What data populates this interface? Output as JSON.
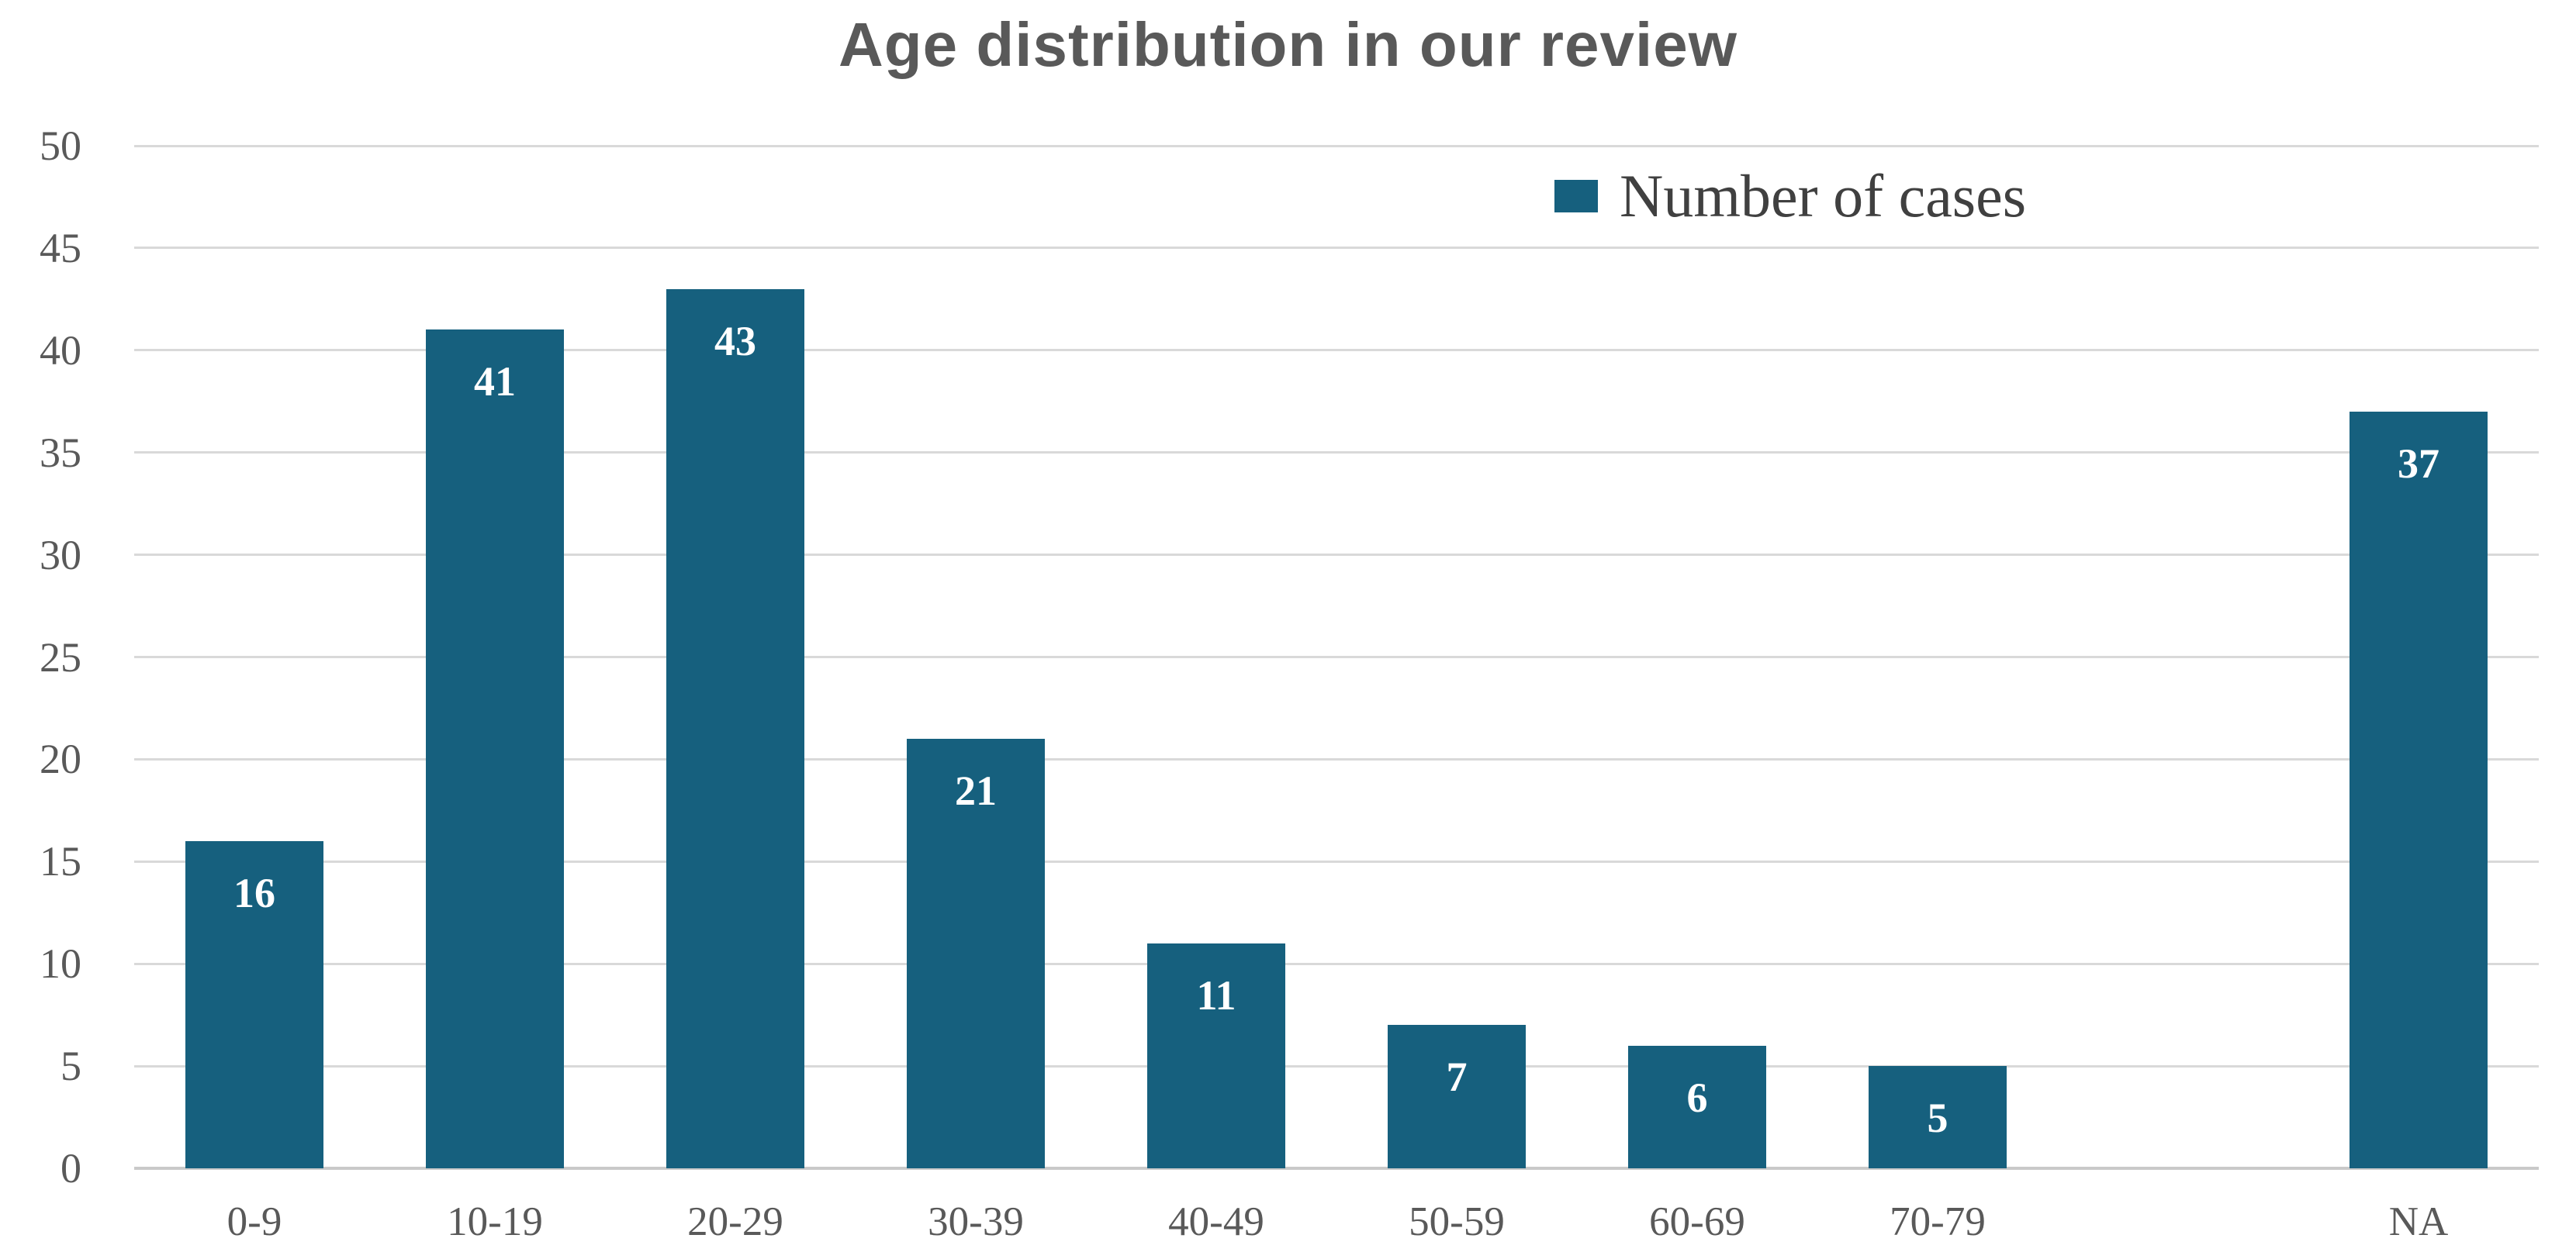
{
  "chart_data": {
    "type": "bar",
    "title": "Age distribution in our review",
    "legend_label": "Number of cases",
    "legend_position": "top-right-inside",
    "categories": [
      "0-9",
      "10-19",
      "20-29",
      "30-39",
      "40-49",
      "50-59",
      "60-69",
      "70-79",
      "",
      "NA"
    ],
    "values": [
      16,
      41,
      43,
      21,
      11,
      7,
      6,
      5,
      null,
      37
    ],
    "data_labels": [
      "16",
      "41",
      "43",
      "21",
      "11",
      "7",
      "6",
      "5",
      "",
      "37"
    ],
    "xlabel": "",
    "ylabel": "",
    "ylim": [
      0,
      50
    ],
    "yticks": [
      0,
      5,
      10,
      15,
      20,
      25,
      30,
      35,
      40,
      45,
      50
    ],
    "grid": true,
    "colors": {
      "bar": "#16607E",
      "gridline": "#D9D9D9",
      "axis_line": "#C9C9C9",
      "tick_text": "#595959",
      "title_text": "#595959",
      "legend_text": "#404040",
      "data_label_text": "#FFFFFF"
    }
  }
}
